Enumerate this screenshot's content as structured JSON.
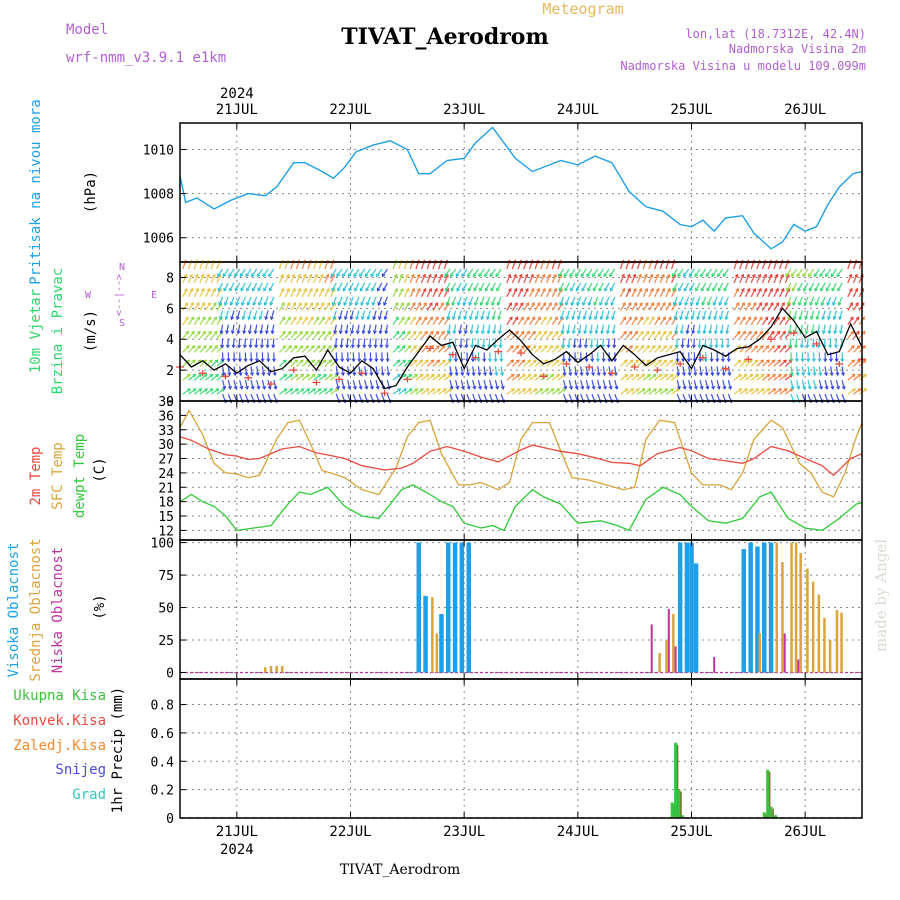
{
  "header": {
    "model_label": "Model",
    "model_name": "wrf-nmm_v3.9.1 e1km",
    "title": "TIVAT_Aerodrom",
    "kind": "Meteogram",
    "location": "lon,lat (18.7312E, 42.4N)",
    "elevation": "Nadmorska Visina 2m",
    "model_elevation": "Nadmorska Visina u modelu 109.099m"
  },
  "footer": {
    "station": "TIVAT_Aerodrom",
    "credit": "made by Angel"
  },
  "colors": {
    "pressure": "#1e9fe8",
    "t2m": "#e84a40",
    "sfc": "#d9a43a",
    "dew": "#31c93a",
    "cloud_high": "#1e9fe8",
    "cloud_mid": "#d9a43a",
    "cloud_low": "#c0329e",
    "precip_total": "#3fbf3f",
    "precip_conv": "#e84a40",
    "precip_frozen": "#f28a2e",
    "snow": "#4b4bdf",
    "graupel": "#2fc6c6",
    "wind_arrow_palette": [
      "#2c3fe0",
      "#24bfd2",
      "#2fd56e",
      "#8fd63a",
      "#e3c23a",
      "#f07a36",
      "#e8382e"
    ]
  },
  "axes": {
    "dates": [
      "21JUL",
      "22JUL",
      "23JUL",
      "24JUL",
      "25JUL",
      "26JUL"
    ],
    "year": "2024",
    "x_range_days": [
      20.5,
      26.5
    ]
  },
  "chart_data": [
    {
      "type": "line",
      "panel": "pressure",
      "ylabel": "Pritisak na nivou mora",
      "unit": "(hPa)",
      "ylim": [
        1004.9,
        1011.2
      ],
      "yticks": [
        1006,
        1008,
        1010
      ],
      "grid": true,
      "series": [
        {
          "name": "Pritisak na nivou mora",
          "x": [
            20.5,
            20.55,
            20.65,
            20.8,
            20.95,
            21.1,
            21.25,
            21.35,
            21.5,
            21.6,
            21.75,
            21.85,
            21.95,
            22.05,
            22.2,
            22.35,
            22.5,
            22.6,
            22.7,
            22.85,
            23.0,
            23.1,
            23.25,
            23.35,
            23.45,
            23.6,
            23.75,
            23.85,
            24.0,
            24.15,
            24.3,
            24.45,
            24.6,
            24.75,
            24.9,
            25.0,
            25.1,
            25.2,
            25.3,
            25.45,
            25.55,
            25.7,
            25.8,
            25.9,
            26.0,
            26.1,
            26.2,
            26.3,
            26.42,
            26.5
          ],
          "y": [
            1008.8,
            1007.6,
            1007.8,
            1007.3,
            1007.7,
            1008.0,
            1007.9,
            1008.3,
            1009.4,
            1009.4,
            1009.0,
            1008.7,
            1009.2,
            1009.9,
            1010.2,
            1010.4,
            1010.0,
            1008.9,
            1008.9,
            1009.5,
            1009.6,
            1010.3,
            1011.0,
            1010.3,
            1009.6,
            1009.0,
            1009.3,
            1009.5,
            1009.3,
            1009.7,
            1009.4,
            1008.1,
            1007.4,
            1007.2,
            1006.6,
            1006.5,
            1006.8,
            1006.3,
            1006.9,
            1007.0,
            1006.2,
            1005.5,
            1005.8,
            1006.6,
            1006.3,
            1006.5,
            1007.5,
            1008.3,
            1008.9,
            1009.0
          ]
        }
      ]
    },
    {
      "type": "line",
      "panel": "wind",
      "ylabel_lines": [
        "10m Vjetar",
        "Brzina i Pravac"
      ],
      "unit": "(m/s)",
      "compass": [
        "W",
        "<--|-->",
        "E",
        "N",
        "S"
      ],
      "ylim": [
        0,
        9
      ],
      "yticks": [
        0,
        2,
        4,
        6,
        8
      ],
      "grid": true,
      "series": [
        {
          "name": "speed",
          "x": [
            20.5,
            20.6,
            20.7,
            20.8,
            20.9,
            21.0,
            21.1,
            21.2,
            21.3,
            21.4,
            21.5,
            21.6,
            21.7,
            21.8,
            21.9,
            22.0,
            22.1,
            22.2,
            22.3,
            22.4,
            22.5,
            22.6,
            22.7,
            22.8,
            22.9,
            23.0,
            23.1,
            23.2,
            23.3,
            23.4,
            23.5,
            23.6,
            23.7,
            23.8,
            23.9,
            24.0,
            24.1,
            24.2,
            24.3,
            24.4,
            24.5,
            24.6,
            24.7,
            24.8,
            24.9,
            25.0,
            25.1,
            25.2,
            25.3,
            25.4,
            25.5,
            25.6,
            25.7,
            25.8,
            25.9,
            26.0,
            26.1,
            26.2,
            26.3,
            26.4,
            26.5
          ],
          "y": [
            3.0,
            2.2,
            2.6,
            2.0,
            2.4,
            1.8,
            2.3,
            2.6,
            1.9,
            2.1,
            2.8,
            2.9,
            2.0,
            3.3,
            2.2,
            1.8,
            2.6,
            2.1,
            0.8,
            1.0,
            2.2,
            3.2,
            4.2,
            3.6,
            3.8,
            2.1,
            3.6,
            3.3,
            4.0,
            4.6,
            3.9,
            3.0,
            2.4,
            2.7,
            3.2,
            2.5,
            3.0,
            3.6,
            2.6,
            3.6,
            3.0,
            2.3,
            2.8,
            3.0,
            3.2,
            2.1,
            3.6,
            3.3,
            2.9,
            3.4,
            3.5,
            4.0,
            4.8,
            6.0,
            5.2,
            4.1,
            4.5,
            3.0,
            3.2,
            5.0,
            3.5
          ]
        }
      ]
    },
    {
      "type": "line",
      "panel": "temperature",
      "ylabel_lines": [
        "2m Temp",
        "SFC Temp",
        "dewpt Temp"
      ],
      "unit": "(C)",
      "ylim": [
        10,
        39
      ],
      "yticks": [
        12,
        15,
        18,
        21,
        24,
        27,
        30,
        33,
        36,
        39
      ],
      "grid": true,
      "series": [
        {
          "name": "2m Temp",
          "x": [
            20.5,
            20.6,
            20.75,
            20.9,
            21.0,
            21.1,
            21.2,
            21.4,
            21.55,
            21.7,
            21.85,
            21.95,
            22.1,
            22.3,
            22.45,
            22.55,
            22.7,
            22.85,
            23.0,
            23.15,
            23.3,
            23.5,
            23.6,
            23.75,
            23.85,
            24.0,
            24.15,
            24.3,
            24.45,
            24.55,
            24.7,
            24.9,
            25.0,
            25.15,
            25.3,
            25.45,
            25.55,
            25.7,
            25.85,
            26.0,
            26.15,
            26.25,
            26.4,
            26.5
          ],
          "y": [
            31.5,
            30.8,
            29.0,
            27.8,
            27.5,
            26.8,
            27.0,
            29.0,
            29.5,
            28.2,
            27.5,
            27.0,
            25.5,
            24.6,
            25.0,
            26.0,
            28.5,
            29.5,
            28.5,
            27.3,
            26.3,
            28.8,
            29.8,
            29.0,
            28.5,
            28.0,
            27.2,
            26.2,
            26.0,
            25.5,
            28.0,
            29.3,
            28.6,
            27.0,
            26.5,
            26.0,
            27.0,
            29.5,
            28.6,
            27.0,
            25.5,
            23.5,
            27.0,
            28.0
          ]
        },
        {
          "name": "SFC Temp",
          "x": [
            20.5,
            20.58,
            20.7,
            20.8,
            20.9,
            21.0,
            21.1,
            21.2,
            21.35,
            21.45,
            21.55,
            21.65,
            21.75,
            21.85,
            21.95,
            22.1,
            22.25,
            22.4,
            22.5,
            22.6,
            22.7,
            22.8,
            22.95,
            23.05,
            23.15,
            23.3,
            23.4,
            23.5,
            23.6,
            23.75,
            23.85,
            23.95,
            24.1,
            24.25,
            24.4,
            24.5,
            24.6,
            24.72,
            24.85,
            25.0,
            25.1,
            25.25,
            25.35,
            25.45,
            25.55,
            25.7,
            25.8,
            25.95,
            26.05,
            26.15,
            26.25,
            26.35,
            26.45,
            26.5
          ],
          "y": [
            33.5,
            37.0,
            32.0,
            26.0,
            24.0,
            23.8,
            23.0,
            23.5,
            31.0,
            34.5,
            35.0,
            30.0,
            24.5,
            23.8,
            23.0,
            20.5,
            19.5,
            25.0,
            31.5,
            34.5,
            35.0,
            28.0,
            21.5,
            21.5,
            22.0,
            20.5,
            22.0,
            31.0,
            34.5,
            34.5,
            28.5,
            23.0,
            22.5,
            21.5,
            20.5,
            21.0,
            31.0,
            35.0,
            34.5,
            24.0,
            21.5,
            21.5,
            20.5,
            24.0,
            31.0,
            35.0,
            33.5,
            26.0,
            24.0,
            20.0,
            19.0,
            24.0,
            31.5,
            34.5
          ]
        },
        {
          "name": "dewpt Temp",
          "x": [
            20.5,
            20.6,
            20.7,
            20.8,
            20.9,
            21.0,
            21.15,
            21.3,
            21.45,
            21.55,
            21.65,
            21.8,
            21.95,
            22.1,
            22.25,
            22.35,
            22.45,
            22.55,
            22.7,
            22.8,
            22.9,
            23.0,
            23.15,
            23.25,
            23.35,
            23.45,
            23.6,
            23.7,
            23.85,
            24.0,
            24.2,
            24.35,
            24.45,
            24.6,
            24.75,
            24.9,
            25.0,
            25.15,
            25.3,
            25.45,
            25.6,
            25.7,
            25.85,
            26.0,
            26.15,
            26.3,
            26.45,
            26.5
          ],
          "y": [
            18.0,
            19.5,
            18.0,
            17.0,
            15.0,
            12.0,
            12.5,
            13.0,
            17.5,
            20.0,
            19.5,
            21.0,
            17.0,
            15.0,
            14.5,
            17.5,
            20.5,
            21.5,
            19.5,
            18.0,
            17.0,
            13.5,
            12.5,
            13.0,
            12.0,
            17.0,
            20.5,
            19.0,
            17.5,
            13.5,
            14.0,
            13.0,
            12.0,
            18.5,
            21.0,
            19.5,
            17.0,
            14.0,
            13.5,
            14.5,
            19.0,
            20.0,
            14.5,
            12.5,
            12.0,
            14.5,
            17.5,
            17.8
          ]
        }
      ]
    },
    {
      "type": "bar",
      "panel": "clouds",
      "ylabel_lines": [
        "Visoka Oblacnost",
        "Srednja Oblacnost",
        "Niska Oblacnost"
      ],
      "unit": "(%)",
      "ylim": [
        -5,
        102
      ],
      "yticks": [
        0,
        25,
        50,
        75,
        100
      ],
      "grid": true,
      "series": [
        {
          "name": "Visoka Oblacnost",
          "x": [
            22.6,
            22.66,
            22.8,
            22.86,
            22.92,
            22.98,
            23.04,
            24.9,
            24.96,
            25.0,
            25.04,
            25.46,
            25.52,
            25.58,
            25.64,
            25.7
          ],
          "y": [
            100,
            59,
            45,
            100,
            100,
            100,
            100,
            100,
            100,
            100,
            84,
            95,
            100,
            97,
            100,
            100
          ]
        },
        {
          "name": "Srednja Oblacnost",
          "x": [
            21.25,
            21.3,
            21.35,
            21.4,
            22.72,
            22.76,
            24.72,
            24.78,
            24.84,
            25.6,
            25.75,
            25.8,
            25.88,
            25.92,
            25.96,
            26.02,
            26.07,
            26.12,
            26.17,
            26.22,
            26.28,
            26.32
          ],
          "y": [
            4,
            5,
            5,
            5,
            58,
            30,
            15,
            25,
            45,
            30,
            100,
            85,
            100,
            100,
            92,
            80,
            70,
            60,
            42,
            25,
            48,
            46
          ]
        },
        {
          "name": "Niska Oblacnost",
          "x": [
            24.65,
            24.8,
            24.86,
            25.2,
            25.82,
            25.94
          ],
          "y": [
            37,
            49,
            20,
            12,
            30,
            10
          ]
        }
      ]
    },
    {
      "type": "bar",
      "panel": "precipitation",
      "ylabel_lines": [
        "Ukupna Kisa",
        "Konvek.Kisa",
        "Zaledj.Kisa",
        "Snijeg",
        "Grad"
      ],
      "unit": "1hr Precip (mm)",
      "ylim": [
        0,
        0.98
      ],
      "yticks": [
        0,
        0.2,
        0.4,
        0.6,
        0.8
      ],
      "grid": true,
      "series": [
        {
          "name": "Ukupna Kisa",
          "x": [
            24.83,
            24.86,
            24.89,
            24.92,
            25.64,
            25.67,
            25.7,
            25.74
          ],
          "y": [
            0.11,
            0.53,
            0.2,
            0.02,
            0.04,
            0.34,
            0.08,
            0.02
          ]
        },
        {
          "name": "Konvek.Kisa",
          "x": [],
          "y": []
        },
        {
          "name": "Zaledj.Kisa",
          "x": [],
          "y": []
        },
        {
          "name": "Snijeg",
          "x": [],
          "y": []
        },
        {
          "name": "Grad",
          "x": [],
          "y": []
        }
      ]
    }
  ]
}
